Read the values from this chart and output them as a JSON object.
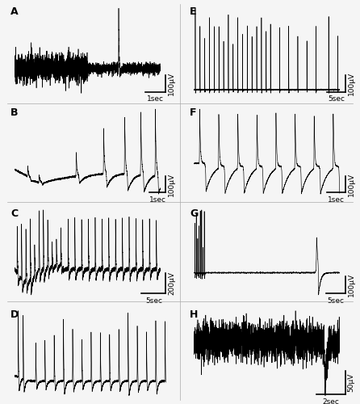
{
  "panels": [
    {
      "label": "A",
      "scale_v": "100μV",
      "scale_t": "1sec",
      "col": 0,
      "row": 0
    },
    {
      "label": "B",
      "scale_v": "100μV",
      "scale_t": "1sec",
      "col": 0,
      "row": 1
    },
    {
      "label": "C",
      "scale_v": "200μV",
      "scale_t": "5sec",
      "col": 0,
      "row": 2
    },
    {
      "label": "D",
      "scale_v": "",
      "scale_t": "",
      "col": 0,
      "row": 3
    },
    {
      "label": "E",
      "scale_v": "100μV",
      "scale_t": "5sec",
      "col": 1,
      "row": 0
    },
    {
      "label": "F",
      "scale_v": "100μV",
      "scale_t": "1sec",
      "col": 1,
      "row": 1
    },
    {
      "label": "G",
      "scale_v": "100μV",
      "scale_t": "5sec",
      "col": 1,
      "row": 2
    },
    {
      "label": "H",
      "scale_v": "50μV",
      "scale_t": "2sec",
      "col": 1,
      "row": 3
    }
  ],
  "fig_bg": "#f0f0f0",
  "trace_color": "#000000",
  "label_fontsize": 9,
  "scale_fontsize": 6.5
}
